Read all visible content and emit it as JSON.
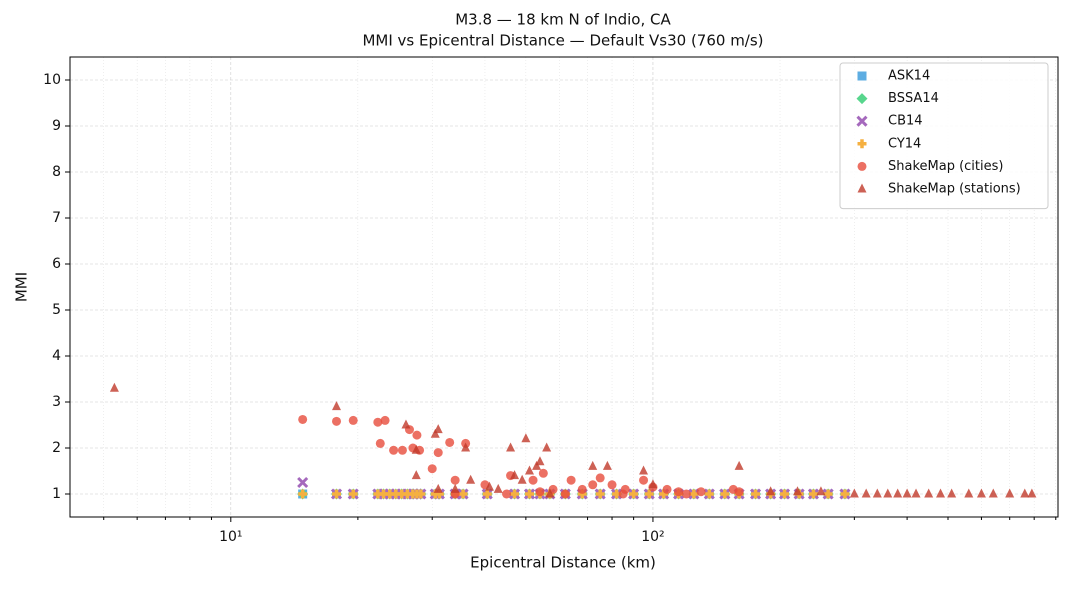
{
  "chart_data": {
    "type": "scatter",
    "title": "M3.8 — 18 km N of Indio, CA",
    "subtitle": "MMI vs Epicentral Distance — Default Vs30 (760 m/s)",
    "x_label": "Epicentral Distance (km)",
    "y_label": "MMI",
    "x_scale": "log",
    "grid": true,
    "legend_position": "upper right",
    "xlim": [
      4.16,
      911
    ],
    "ylim": [
      0.5,
      10.5
    ],
    "xticks": [
      {
        "value": 10,
        "label": "10¹"
      },
      {
        "value": 100,
        "label": "10²"
      }
    ],
    "xminorticks": [
      5,
      6,
      7,
      8,
      9,
      20,
      30,
      40,
      50,
      60,
      70,
      80,
      90,
      200,
      300,
      400,
      500,
      600,
      700,
      800,
      900
    ],
    "yticks": [
      1,
      2,
      3,
      4,
      5,
      6,
      7,
      8,
      9,
      10
    ],
    "series": [
      {
        "name": "ASK14",
        "color": "#5dade2",
        "marker": "square",
        "x": [
          14.8,
          17.8,
          19.5,
          22.3,
          23,
          23.8,
          24.6,
          25.4,
          26.2,
          27,
          27.6,
          28.2,
          30.5,
          31.2,
          34,
          35.5,
          40.5,
          47,
          51,
          54,
          57,
          62,
          68,
          75,
          82,
          90,
          98,
          106,
          115,
          125,
          136,
          148,
          160,
          175,
          190,
          205,
          222,
          240,
          260,
          285
        ],
        "values": [
          1,
          1,
          1,
          1,
          1,
          1,
          1,
          1,
          1,
          1,
          1,
          1,
          1,
          1,
          1,
          1,
          1,
          1,
          1,
          1,
          1,
          1,
          1,
          1,
          1,
          1,
          1,
          1,
          1,
          1,
          1,
          1,
          1,
          1,
          1,
          1,
          1,
          1,
          1,
          1
        ]
      },
      {
        "name": "BSSA14",
        "color": "#58d68d",
        "marker": "diamond",
        "x": [
          14.8,
          17.8,
          19.5,
          22.3,
          23,
          23.8,
          24.6,
          25.4,
          26.2,
          27,
          27.6,
          28.2,
          30.5,
          31.2,
          34,
          35.5,
          40.5,
          47,
          51,
          54,
          57,
          62,
          68,
          75,
          82,
          90,
          98,
          106,
          115,
          125,
          136,
          148,
          160,
          175,
          190,
          205,
          222,
          240,
          260,
          285
        ],
        "values": [
          1,
          1,
          1,
          1,
          1,
          1,
          1,
          1,
          1,
          1,
          1,
          1,
          1,
          1,
          1,
          1,
          1,
          1,
          1,
          1,
          1,
          1,
          1,
          1,
          1,
          1,
          1,
          1,
          1,
          1,
          1,
          1,
          1,
          1,
          1,
          1,
          1,
          1,
          1,
          1
        ]
      },
      {
        "name": "CB14",
        "color": "#a569bd",
        "marker": "x",
        "x": [
          14.8,
          17.8,
          19.5,
          22.3,
          23,
          23.8,
          24.6,
          25.4,
          26.2,
          27,
          27.6,
          28.2,
          30.5,
          31.2,
          34,
          35.5,
          40.5,
          47,
          51,
          54,
          57,
          62,
          68,
          75,
          82,
          90,
          98,
          106,
          115,
          125,
          136,
          148,
          160,
          175,
          190,
          205,
          222,
          240,
          260,
          285
        ],
        "values": [
          1.25,
          1,
          1,
          1,
          1,
          1,
          1,
          1,
          1,
          1,
          1,
          1,
          1,
          1,
          1,
          1,
          1,
          1,
          1,
          1,
          1,
          1,
          1,
          1,
          1,
          1,
          1,
          1,
          1,
          1,
          1,
          1,
          1,
          1,
          1,
          1,
          1,
          1,
          1,
          1
        ]
      },
      {
        "name": "CY14",
        "color": "#f5b041",
        "marker": "plus",
        "x": [
          14.8,
          17.8,
          19.5,
          22.3,
          23,
          23.8,
          24.6,
          25.4,
          26.2,
          27,
          27.6,
          28.2,
          30.5,
          31.2,
          34,
          35.5,
          40.5,
          47,
          51,
          54,
          57,
          62,
          68,
          75,
          82,
          90,
          98,
          106,
          115,
          125,
          136,
          148,
          160,
          175,
          190,
          205,
          222,
          240,
          260,
          285
        ],
        "values": [
          1,
          1,
          1,
          1,
          1,
          1,
          1,
          1,
          1,
          1,
          1,
          1,
          1,
          1,
          1,
          1,
          1,
          1,
          1,
          1,
          1,
          1,
          1,
          1,
          1,
          1,
          1,
          1,
          1,
          1,
          1,
          1,
          1,
          1,
          1,
          1,
          1,
          1,
          1,
          1
        ]
      },
      {
        "name": "ShakeMap (cities)",
        "color": "#e74c3c",
        "marker": "circle",
        "x": [
          14.8,
          17.8,
          19.5,
          22.3,
          23.2,
          22.6,
          24.3,
          25.5,
          26.5,
          27,
          27.6,
          28,
          30,
          31,
          33,
          34,
          36,
          40,
          46,
          52,
          55,
          54,
          58,
          64,
          68,
          72,
          75,
          80,
          86,
          95,
          100,
          108,
          115,
          130,
          155,
          160,
          34,
          45,
          62,
          85,
          120
        ],
        "values": [
          2.62,
          2.58,
          2.6,
          2.56,
          2.6,
          2.1,
          1.95,
          1.95,
          2.4,
          2.0,
          2.28,
          1.95,
          1.55,
          1.9,
          2.12,
          1.3,
          2.1,
          1.2,
          1.4,
          1.3,
          1.45,
          1.05,
          1.1,
          1.3,
          1.1,
          1.2,
          1.35,
          1.2,
          1.1,
          1.3,
          1.15,
          1.1,
          1.05,
          1.05,
          1.1,
          1.05,
          1.0,
          1.0,
          1.0,
          1.0,
          1.0
        ]
      },
      {
        "name": "ShakeMap (stations)",
        "color": "#c0392b",
        "marker": "triangle",
        "x": [
          5.3,
          17.8,
          26,
          27.5,
          27.5,
          31,
          30.5,
          31,
          34,
          36,
          37,
          41,
          43,
          46,
          47,
          49,
          50,
          51,
          53,
          54,
          56,
          57,
          72,
          78,
          95,
          100,
          160,
          190,
          220,
          250,
          300,
          320,
          340,
          360,
          380,
          400,
          420,
          450,
          480,
          510,
          560,
          600,
          640,
          700,
          760,
          790
        ],
        "values": [
          3.3,
          2.9,
          2.5,
          1.95,
          1.4,
          2.4,
          2.3,
          1.1,
          1.1,
          2.0,
          1.3,
          1.15,
          1.1,
          2.0,
          1.4,
          1.3,
          2.2,
          1.5,
          1.6,
          1.7,
          2.0,
          1.0,
          1.6,
          1.6,
          1.5,
          1.2,
          1.6,
          1.05,
          1.05,
          1.05,
          1.0,
          1.0,
          1.0,
          1.0,
          1.0,
          1.0,
          1.0,
          1.0,
          1.0,
          1.0,
          1.0,
          1.0,
          1.0,
          1.0,
          1.0,
          1.0
        ]
      }
    ]
  }
}
